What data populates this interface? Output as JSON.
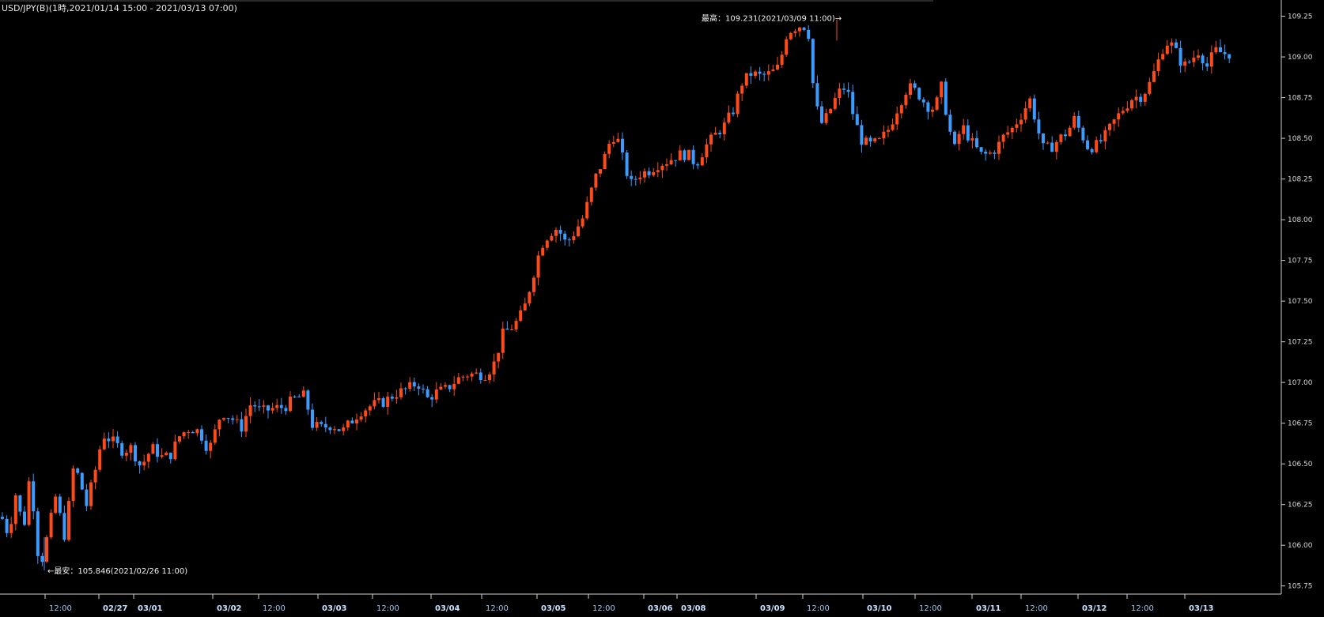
{
  "chart_data": {
    "type": "candlestick",
    "title": "USD/JPY(B)(1時,2021/01/14 15:00 - 2021/03/13 07:00)",
    "ylim": [
      105.7,
      109.34
    ],
    "y_ticks": [
      "105.75",
      "106.00",
      "106.25",
      "106.50",
      "106.75",
      "107.00",
      "107.25",
      "107.50",
      "107.75",
      "108.00",
      "108.25",
      "108.50",
      "108.75",
      "109.00",
      "109.25"
    ],
    "x_ticks": [
      {
        "label": "12:00",
        "x": 60,
        "kind": "time"
      },
      {
        "label": "02/27",
        "x": 128,
        "kind": "date"
      },
      {
        "label": "03/01",
        "x": 172,
        "kind": "date"
      },
      {
        "label": "03/02",
        "x": 272,
        "kind": "date"
      },
      {
        "label": "12:00",
        "x": 330,
        "kind": "time"
      },
      {
        "label": "03/03",
        "x": 405,
        "kind": "date"
      },
      {
        "label": "12:00",
        "x": 474,
        "kind": "time"
      },
      {
        "label": "03/04",
        "x": 548,
        "kind": "date"
      },
      {
        "label": "12:00",
        "x": 612,
        "kind": "time"
      },
      {
        "label": "03/05",
        "x": 682,
        "kind": "date"
      },
      {
        "label": "12:00",
        "x": 747,
        "kind": "time"
      },
      {
        "label": "03/06",
        "x": 817,
        "kind": "date"
      },
      {
        "label": "03/08",
        "x": 859,
        "kind": "date"
      },
      {
        "label": "03/09",
        "x": 959,
        "kind": "date"
      },
      {
        "label": "12:00",
        "x": 1018,
        "kind": "time"
      },
      {
        "label": "03/10",
        "x": 1094,
        "kind": "date"
      },
      {
        "label": "12:00",
        "x": 1160,
        "kind": "time"
      },
      {
        "label": "03/11",
        "x": 1232,
        "kind": "date"
      },
      {
        "label": "12:00",
        "x": 1294,
        "kind": "time"
      },
      {
        "label": "03/12",
        "x": 1366,
        "kind": "date"
      },
      {
        "label": "12:00",
        "x": 1428,
        "kind": "time"
      },
      {
        "label": "03/13",
        "x": 1501,
        "kind": "date"
      }
    ],
    "annotations": {
      "high": "最高：109.231(2021/03/09 11:00)→",
      "low": "←最安：105.846(2021/02/26 11:00)"
    },
    "colors": {
      "up": "#ff4a1a",
      "down": "#3b9cff",
      "axis": "#cfcfcf",
      "background": "#000000"
    },
    "path": [
      [
        0,
        106.2
      ],
      [
        12,
        106.05
      ],
      [
        18,
        106.35
      ],
      [
        30,
        106.1
      ],
      [
        38,
        106.45
      ],
      [
        50,
        105.85
      ],
      [
        62,
        106.1
      ],
      [
        70,
        106.3
      ],
      [
        82,
        106.05
      ],
      [
        93,
        106.48
      ],
      [
        102,
        106.4
      ],
      [
        108,
        106.22
      ],
      [
        120,
        106.45
      ],
      [
        130,
        106.68
      ],
      [
        142,
        106.64
      ],
      [
        155,
        106.58
      ],
      [
        166,
        106.6
      ],
      [
        178,
        106.48
      ],
      [
        192,
        106.6
      ],
      [
        205,
        106.54
      ],
      [
        215,
        106.55
      ],
      [
        228,
        106.68
      ],
      [
        240,
        106.72
      ],
      [
        252,
        106.7
      ],
      [
        264,
        106.58
      ],
      [
        280,
        106.82
      ],
      [
        293,
        106.78
      ],
      [
        305,
        106.72
      ],
      [
        318,
        106.88
      ],
      [
        330,
        106.82
      ],
      [
        345,
        106.84
      ],
      [
        360,
        106.85
      ],
      [
        372,
        106.9
      ],
      [
        385,
        106.92
      ],
      [
        395,
        106.74
      ],
      [
        405,
        106.72
      ],
      [
        420,
        106.74
      ],
      [
        433,
        106.7
      ],
      [
        442,
        106.75
      ],
      [
        455,
        106.82
      ],
      [
        470,
        106.86
      ],
      [
        485,
        106.88
      ],
      [
        500,
        106.93
      ],
      [
        515,
        106.96
      ],
      [
        528,
        107.0
      ],
      [
        540,
        106.9
      ],
      [
        552,
        106.94
      ],
      [
        565,
        106.96
      ],
      [
        578,
        107.02
      ],
      [
        590,
        107.05
      ],
      [
        602,
        107.05
      ],
      [
        615,
        107.05
      ],
      [
        625,
        107.12
      ],
      [
        636,
        107.3
      ],
      [
        650,
        107.35
      ],
      [
        662,
        107.44
      ],
      [
        672,
        107.62
      ],
      [
        684,
        107.84
      ],
      [
        695,
        107.92
      ],
      [
        705,
        107.95
      ],
      [
        716,
        107.85
      ],
      [
        726,
        107.92
      ],
      [
        738,
        108.02
      ],
      [
        752,
        108.25
      ],
      [
        764,
        108.38
      ],
      [
        774,
        108.52
      ],
      [
        782,
        108.48
      ],
      [
        790,
        108.32
      ],
      [
        798,
        108.22
      ],
      [
        808,
        108.28
      ],
      [
        820,
        108.3
      ],
      [
        832,
        108.34
      ],
      [
        844,
        108.36
      ],
      [
        858,
        108.4
      ],
      [
        870,
        108.4
      ],
      [
        880,
        108.34
      ],
      [
        892,
        108.45
      ],
      [
        904,
        108.52
      ],
      [
        916,
        108.58
      ],
      [
        928,
        108.68
      ],
      [
        938,
        108.84
      ],
      [
        950,
        108.9
      ],
      [
        962,
        108.88
      ],
      [
        975,
        108.9
      ],
      [
        985,
        108.94
      ],
      [
        995,
        109.15
      ],
      [
        1005,
        109.18
      ],
      [
        1015,
        109.2
      ],
      [
        1022,
        109.15
      ],
      [
        1030,
        108.72
      ],
      [
        1040,
        108.58
      ],
      [
        1050,
        108.68
      ],
      [
        1060,
        108.78
      ],
      [
        1070,
        108.82
      ],
      [
        1080,
        108.62
      ],
      [
        1090,
        108.48
      ],
      [
        1100,
        108.46
      ],
      [
        1112,
        108.48
      ],
      [
        1124,
        108.56
      ],
      [
        1136,
        108.7
      ],
      [
        1148,
        108.82
      ],
      [
        1160,
        108.78
      ],
      [
        1172,
        108.7
      ],
      [
        1182,
        108.68
      ],
      [
        1190,
        108.82
      ],
      [
        1198,
        108.62
      ],
      [
        1206,
        108.42
      ],
      [
        1216,
        108.58
      ],
      [
        1228,
        108.48
      ],
      [
        1240,
        108.4
      ],
      [
        1250,
        108.4
      ],
      [
        1260,
        108.44
      ],
      [
        1270,
        108.52
      ],
      [
        1280,
        108.56
      ],
      [
        1292,
        108.65
      ],
      [
        1302,
        108.74
      ],
      [
        1310,
        108.6
      ],
      [
        1318,
        108.44
      ],
      [
        1328,
        108.44
      ],
      [
        1340,
        108.5
      ],
      [
        1350,
        108.54
      ],
      [
        1358,
        108.62
      ],
      [
        1366,
        108.54
      ],
      [
        1376,
        108.44
      ],
      [
        1388,
        108.46
      ],
      [
        1398,
        108.52
      ],
      [
        1408,
        108.6
      ],
      [
        1420,
        108.68
      ],
      [
        1432,
        108.75
      ],
      [
        1444,
        108.76
      ],
      [
        1454,
        108.84
      ],
      [
        1462,
        108.94
      ],
      [
        1470,
        109.05
      ],
      [
        1478,
        109.1
      ],
      [
        1488,
        109.02
      ],
      [
        1496,
        108.94
      ],
      [
        1506,
        108.98
      ],
      [
        1516,
        109.04
      ],
      [
        1526,
        108.94
      ],
      [
        1536,
        109.04
      ],
      [
        1548,
        109.02
      ],
      [
        1558,
        109.02
      ]
    ]
  }
}
